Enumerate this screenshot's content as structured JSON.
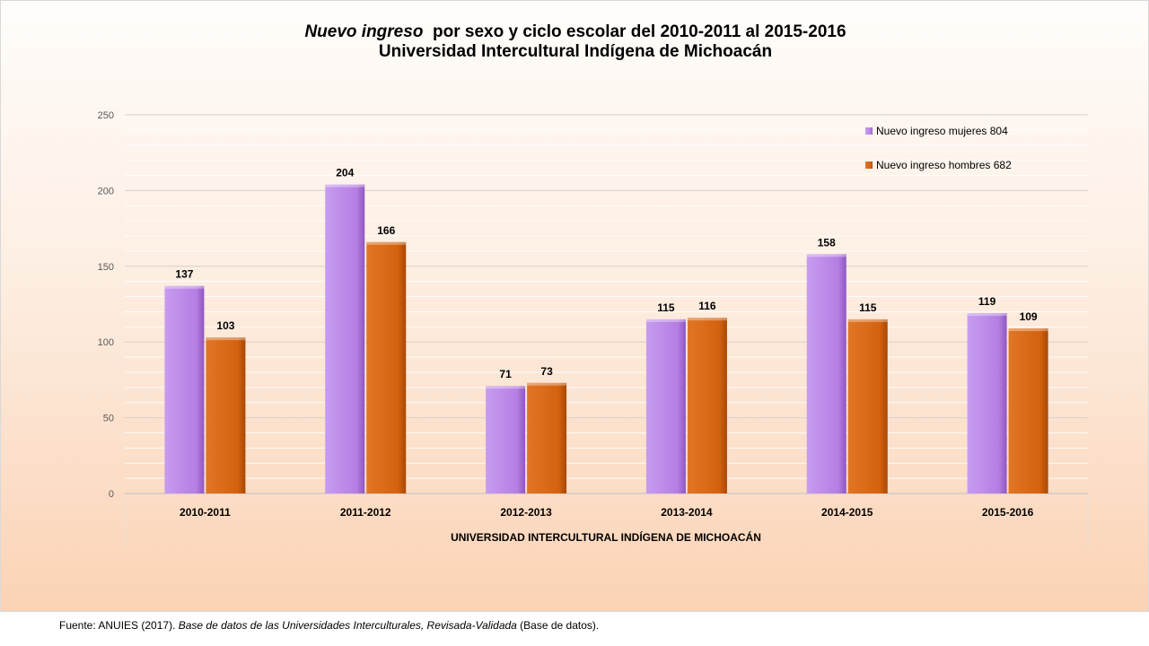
{
  "chart_data": {
    "type": "bar",
    "title_part1": "Nuevo ingreso",
    "title_part2": "por sexo y ciclo escolar del  2010-2011 al 2015-2016",
    "subtitle": "Universidad Intercultural Indígena de Michoacán",
    "xlabel": "UNIVERSIDAD INTERCULTURAL INDÍGENA DE MICHOACÁN",
    "ylabel": "",
    "ylim": [
      0,
      250
    ],
    "yticks": [
      0,
      50,
      100,
      150,
      200,
      250
    ],
    "grid": true,
    "legend_position": "top-right",
    "categories": [
      "2010-2011",
      "2011-2012",
      "2012-2013",
      "2013-2014",
      "2014-2015",
      "2015-2016"
    ],
    "series": [
      {
        "name": "Nuevo ingreso mujeres 804",
        "color": "#b57ee3",
        "values": [
          137,
          204,
          71,
          115,
          158,
          119
        ]
      },
      {
        "name": "Nuevo ingreso hombres 682",
        "color": "#d4620f",
        "values": [
          103,
          166,
          73,
          116,
          115,
          109
        ]
      }
    ]
  },
  "source": {
    "prefix": "Fuente:  ANUIES  (2017). ",
    "italic": "Base de datos de las Universidades  Interculturales, Revisada-Validada",
    "suffix": "  (Base de datos)."
  }
}
